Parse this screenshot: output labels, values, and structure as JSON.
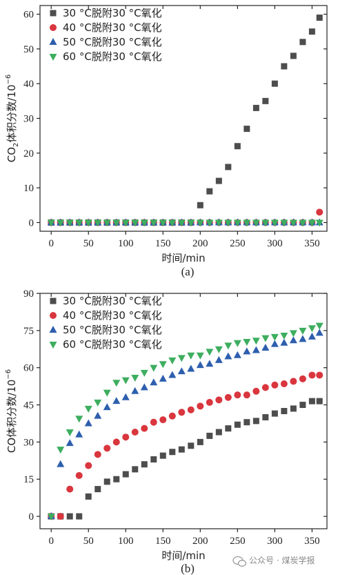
{
  "chart_data": [
    {
      "type": "scatter",
      "panel_label": "(a)",
      "xlabel": "时间/min",
      "ylabel": "CO₂体积分数/10⁻⁶",
      "ylabel_main": "CO",
      "ylabel_sub": "2",
      "ylabel_rest": "体积分数/10",
      "ylabel_exp": "−6",
      "xlim": [
        -15,
        370
      ],
      "ylim": [
        -2.5,
        62.5
      ],
      "xticks": [
        0,
        50,
        100,
        150,
        200,
        250,
        300,
        350
      ],
      "yticks": [
        0,
        10,
        20,
        30,
        40,
        50,
        60
      ],
      "xtick_labels": [
        "0",
        "50",
        "100",
        "150",
        "200",
        "250",
        "300",
        "350"
      ],
      "ytick_labels": [
        "0",
        "10",
        "20",
        "30",
        "40",
        "50",
        "60"
      ],
      "legend_position": "top-left",
      "series": [
        {
          "name": "30 °C脱附30 °C氧化",
          "marker": "square",
          "color": "#4d4d4d",
          "x": [
            0,
            12.5,
            25,
            37.5,
            50,
            62.5,
            75,
            87.5,
            100,
            112.5,
            125,
            137.5,
            150,
            162.5,
            175,
            187.5,
            200,
            212.5,
            225,
            237.5,
            250,
            262.5,
            275,
            287.5,
            300,
            312.5,
            325,
            337.5,
            350,
            360
          ],
          "y": [
            0,
            0,
            0,
            0,
            0,
            0,
            0,
            0,
            0,
            0,
            0,
            0,
            0,
            0,
            0,
            0,
            5,
            9,
            12,
            16,
            22,
            27,
            33,
            35,
            40,
            45,
            48,
            52,
            55,
            59
          ]
        },
        {
          "name": "40 °C脱附30 °C氧化",
          "marker": "circle",
          "color": "#d9363e",
          "x": [
            0,
            12.5,
            25,
            37.5,
            50,
            62.5,
            75,
            87.5,
            100,
            112.5,
            125,
            137.5,
            150,
            162.5,
            175,
            187.5,
            200,
            212.5,
            225,
            237.5,
            250,
            262.5,
            275,
            287.5,
            300,
            312.5,
            325,
            337.5,
            350,
            360
          ],
          "y": [
            0,
            0,
            0,
            0,
            0,
            0,
            0,
            0,
            0,
            0,
            0,
            0,
            0,
            0,
            0,
            0,
            0,
            0,
            0,
            0,
            0,
            0,
            0,
            0,
            0,
            0,
            0,
            0,
            0,
            3
          ]
        },
        {
          "name": "50 °C脱附30 °C氧化",
          "marker": "triangle-up",
          "color": "#2e5fae",
          "x": [
            0,
            12.5,
            25,
            37.5,
            50,
            62.5,
            75,
            87.5,
            100,
            112.5,
            125,
            137.5,
            150,
            162.5,
            175,
            187.5,
            200,
            212.5,
            225,
            237.5,
            250,
            262.5,
            275,
            287.5,
            300,
            312.5,
            325,
            337.5,
            350,
            360
          ],
          "y": [
            0,
            0,
            0,
            0,
            0,
            0,
            0,
            0,
            0,
            0,
            0,
            0,
            0,
            0,
            0,
            0,
            0,
            0,
            0,
            0,
            0,
            0,
            0,
            0,
            0,
            0,
            0,
            0,
            0,
            0
          ]
        },
        {
          "name": "60 °C脱附30 °C氧化",
          "marker": "triangle-down",
          "color": "#3dae5f",
          "x": [
            0,
            12.5,
            25,
            37.5,
            50,
            62.5,
            75,
            87.5,
            100,
            112.5,
            125,
            137.5,
            150,
            162.5,
            175,
            187.5,
            200,
            212.5,
            225,
            237.5,
            250,
            262.5,
            275,
            287.5,
            300,
            312.5,
            325,
            337.5,
            350,
            360
          ],
          "y": [
            0,
            0,
            0,
            0,
            0,
            0,
            0,
            0,
            0,
            0,
            0,
            0,
            0,
            0,
            0,
            0,
            0,
            0,
            0,
            0,
            0,
            0,
            0,
            0,
            0,
            0,
            0,
            0,
            0,
            0
          ]
        }
      ]
    },
    {
      "type": "scatter",
      "panel_label": "(b)",
      "xlabel": "时间/min",
      "ylabel": "CO体积分数/10⁻⁶",
      "ylabel_main": "CO",
      "ylabel_sub": "",
      "ylabel_rest": "体积分数/10",
      "ylabel_exp": "−6",
      "xlim": [
        -15,
        370
      ],
      "ylim": [
        -5,
        90
      ],
      "xticks": [
        0,
        50,
        100,
        150,
        200,
        250,
        300,
        350
      ],
      "yticks": [
        0,
        15,
        30,
        45,
        60,
        75,
        90
      ],
      "xtick_labels": [
        "0",
        "50",
        "100",
        "150",
        "200",
        "250",
        "300",
        "350"
      ],
      "ytick_labels": [
        "0",
        "15",
        "30",
        "45",
        "60",
        "75",
        "90"
      ],
      "legend_position": "top-left",
      "series": [
        {
          "name": "30 °C脱附30 °C氧化",
          "marker": "square",
          "color": "#4d4d4d",
          "x": [
            0,
            12.5,
            25,
            37.5,
            50,
            62.5,
            75,
            87.5,
            100,
            112.5,
            125,
            137.5,
            150,
            162.5,
            175,
            187.5,
            200,
            212.5,
            225,
            237.5,
            250,
            262.5,
            275,
            287.5,
            300,
            312.5,
            325,
            337.5,
            350,
            360
          ],
          "y": [
            0,
            0,
            0,
            0,
            8,
            11,
            14,
            15,
            17,
            19,
            21,
            23,
            24.5,
            26,
            27,
            28.5,
            30,
            32.5,
            34,
            35.5,
            37,
            38,
            38.5,
            40,
            41.5,
            42.5,
            43.5,
            45,
            46.5,
            46.5
          ]
        },
        {
          "name": "40 °C脱附30 °C氧化",
          "marker": "circle",
          "color": "#d9363e",
          "x": [
            0,
            12.5,
            25,
            37.5,
            50,
            62.5,
            75,
            87.5,
            100,
            112.5,
            125,
            137.5,
            150,
            162.5,
            175,
            187.5,
            200,
            212.5,
            225,
            237.5,
            250,
            262.5,
            275,
            287.5,
            300,
            312.5,
            325,
            337.5,
            350,
            360
          ],
          "y": [
            0,
            0,
            11,
            16.5,
            20.5,
            25,
            27.5,
            30,
            32,
            34,
            35.5,
            38,
            39,
            40.5,
            42,
            43,
            44.5,
            46,
            47,
            48,
            49,
            49,
            50.5,
            52,
            53,
            53.5,
            54.5,
            55.5,
            57,
            57
          ]
        },
        {
          "name": "50 °C脱附30 °C氧化",
          "marker": "triangle-up",
          "color": "#2e5fae",
          "x": [
            0,
            12.5,
            25,
            37.5,
            50,
            62.5,
            75,
            87.5,
            100,
            112.5,
            125,
            137.5,
            150,
            162.5,
            175,
            187.5,
            200,
            212.5,
            225,
            237.5,
            250,
            262.5,
            275,
            287.5,
            300,
            312.5,
            325,
            337.5,
            350,
            360
          ],
          "y": [
            0,
            21,
            29.5,
            33,
            37.5,
            40.5,
            44,
            46.5,
            48,
            50.5,
            52,
            54,
            55.5,
            57,
            58.5,
            59.5,
            61,
            61.5,
            63,
            64.5,
            65,
            66.5,
            67,
            68,
            69.5,
            70,
            71,
            71.5,
            72.5,
            74
          ]
        },
        {
          "name": "60 °C脱附30 °C氧化",
          "marker": "triangle-down",
          "color": "#3dae5f",
          "x": [
            0,
            12.5,
            25,
            37.5,
            50,
            62.5,
            75,
            87.5,
            100,
            112.5,
            125,
            137.5,
            150,
            162.5,
            175,
            187.5,
            200,
            212.5,
            225,
            237.5,
            250,
            262.5,
            275,
            287.5,
            300,
            312.5,
            325,
            337.5,
            350,
            360
          ],
          "y": [
            0,
            27,
            34,
            39.5,
            43.5,
            46,
            50,
            54,
            55,
            56,
            58,
            60,
            61.5,
            63,
            64,
            65,
            65,
            66.5,
            67.5,
            69,
            70,
            70.5,
            71,
            72,
            72.5,
            73,
            74,
            75,
            76,
            77
          ]
        }
      ]
    }
  ],
  "watermark": {
    "text": "公众号 · 煤炭学报",
    "icon": "wechat-icon"
  }
}
